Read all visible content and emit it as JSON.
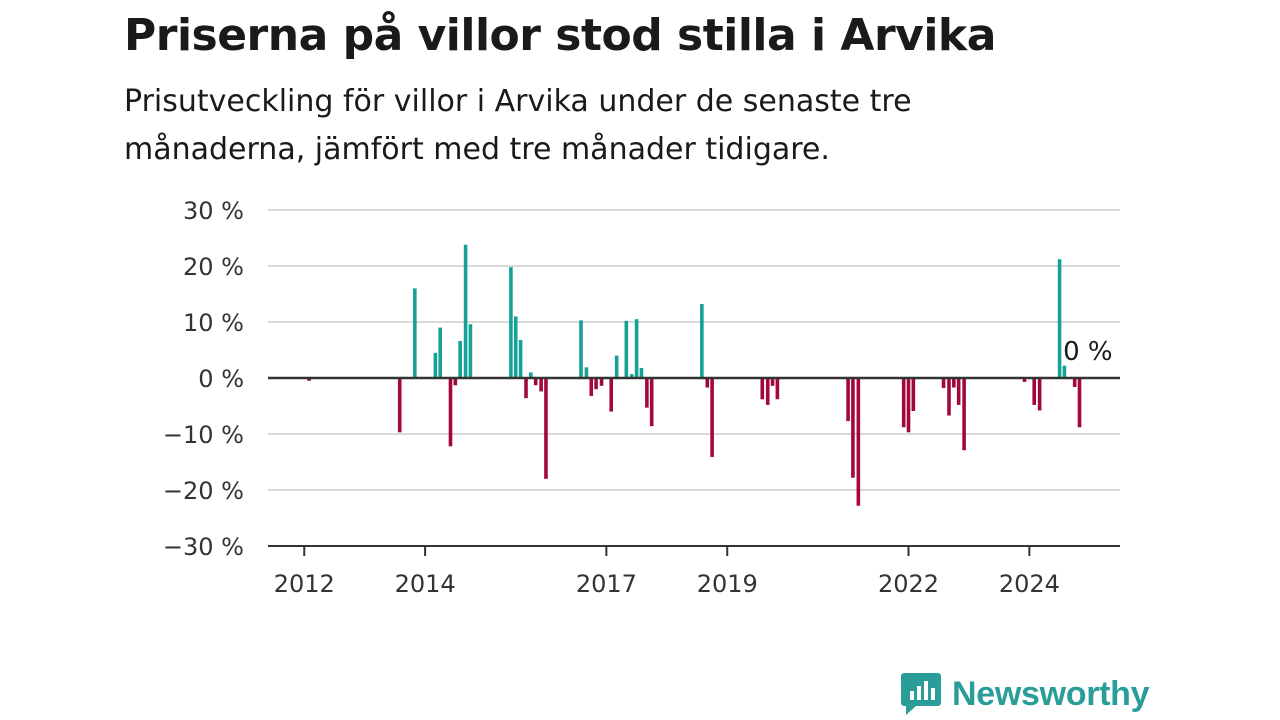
{
  "header": {
    "title": "Priserna på villor stod stilla i Arvika",
    "subtitle": "Prisutveckling för villor i Arvika under de senaste tre månaderna, jämfört med tre månader tidigare."
  },
  "brand": {
    "name": "Newsworthy",
    "icon": "newsworthy-logo-icon",
    "color": "#2a9d98"
  },
  "colors": {
    "positive": "#16a196",
    "negative": "#a3073f",
    "grid": "#d9d9d9",
    "zero_line": "#333333"
  },
  "chart_data": {
    "type": "bar",
    "title": "Priserna på villor stod stilla i Arvika",
    "subtitle": "Prisutveckling för villor i Arvika under de senaste tre månaderna, jämfört med tre månader tidigare.",
    "xlabel": "",
    "ylabel": "",
    "ylim": [
      -30,
      30
    ],
    "xlim": [
      2011.4,
      2025.5
    ],
    "y_ticks": [
      30,
      20,
      10,
      0,
      -10,
      -20,
      -30
    ],
    "y_tick_labels": [
      "30 %",
      "20 %",
      "10 %",
      "0 %",
      "−10 %",
      "−20 %",
      "−30 %"
    ],
    "x_ticks": [
      2012,
      2014,
      2017,
      2019,
      2022,
      2024
    ],
    "x_tick_labels": [
      "2012",
      "2014",
      "2017",
      "2019",
      "2022",
      "2024"
    ],
    "grid": true,
    "annotation": {
      "text": "0 %",
      "x": 2024.67,
      "y": 0
    },
    "series": [
      {
        "values": [
          {
            "x": 2012.08,
            "y": -0.5
          },
          {
            "x": 2013.58,
            "y": -9.7
          },
          {
            "x": 2013.83,
            "y": 16.0
          },
          {
            "x": 2014.17,
            "y": 4.5
          },
          {
            "x": 2014.25,
            "y": 9.0
          },
          {
            "x": 2014.42,
            "y": -12.2
          },
          {
            "x": 2014.5,
            "y": -1.3
          },
          {
            "x": 2014.58,
            "y": 6.6
          },
          {
            "x": 2014.67,
            "y": 23.8
          },
          {
            "x": 2014.75,
            "y": 9.6
          },
          {
            "x": 2015.42,
            "y": 19.8
          },
          {
            "x": 2015.5,
            "y": 11.0
          },
          {
            "x": 2015.58,
            "y": 6.8
          },
          {
            "x": 2015.67,
            "y": -3.6
          },
          {
            "x": 2015.75,
            "y": 1.0
          },
          {
            "x": 2015.83,
            "y": -1.3
          },
          {
            "x": 2015.92,
            "y": -2.4
          },
          {
            "x": 2016.0,
            "y": -18.0
          },
          {
            "x": 2016.58,
            "y": 10.3
          },
          {
            "x": 2016.67,
            "y": 1.9
          },
          {
            "x": 2016.75,
            "y": -3.2
          },
          {
            "x": 2016.83,
            "y": -2.0
          },
          {
            "x": 2016.92,
            "y": -1.4
          },
          {
            "x": 2017.08,
            "y": -6.0
          },
          {
            "x": 2017.17,
            "y": 4.0
          },
          {
            "x": 2017.33,
            "y": 10.2
          },
          {
            "x": 2017.42,
            "y": 0.7
          },
          {
            "x": 2017.5,
            "y": 10.5
          },
          {
            "x": 2017.58,
            "y": 1.8
          },
          {
            "x": 2017.67,
            "y": -5.3
          },
          {
            "x": 2017.75,
            "y": -8.6
          },
          {
            "x": 2018.58,
            "y": 13.2
          },
          {
            "x": 2018.67,
            "y": -1.7
          },
          {
            "x": 2018.75,
            "y": -14.1
          },
          {
            "x": 2019.58,
            "y": -3.8
          },
          {
            "x": 2019.67,
            "y": -4.8
          },
          {
            "x": 2019.75,
            "y": -1.4
          },
          {
            "x": 2019.83,
            "y": -3.8
          },
          {
            "x": 2021.0,
            "y": -7.7
          },
          {
            "x": 2021.08,
            "y": -17.8
          },
          {
            "x": 2021.17,
            "y": -22.8
          },
          {
            "x": 2021.92,
            "y": -8.8
          },
          {
            "x": 2022.0,
            "y": -9.7
          },
          {
            "x": 2022.08,
            "y": -5.9
          },
          {
            "x": 2022.58,
            "y": -1.8
          },
          {
            "x": 2022.67,
            "y": -6.7
          },
          {
            "x": 2022.75,
            "y": -1.7
          },
          {
            "x": 2022.83,
            "y": -4.8
          },
          {
            "x": 2022.92,
            "y": -12.9
          },
          {
            "x": 2023.92,
            "y": -0.7
          },
          {
            "x": 2024.08,
            "y": -4.8
          },
          {
            "x": 2024.17,
            "y": -5.8
          },
          {
            "x": 2024.5,
            "y": 21.2
          },
          {
            "x": 2024.58,
            "y": 2.2
          },
          {
            "x": 2024.67,
            "y": 0
          },
          {
            "x": 2024.75,
            "y": -1.6
          },
          {
            "x": 2024.83,
            "y": -8.8
          }
        ]
      }
    ]
  }
}
